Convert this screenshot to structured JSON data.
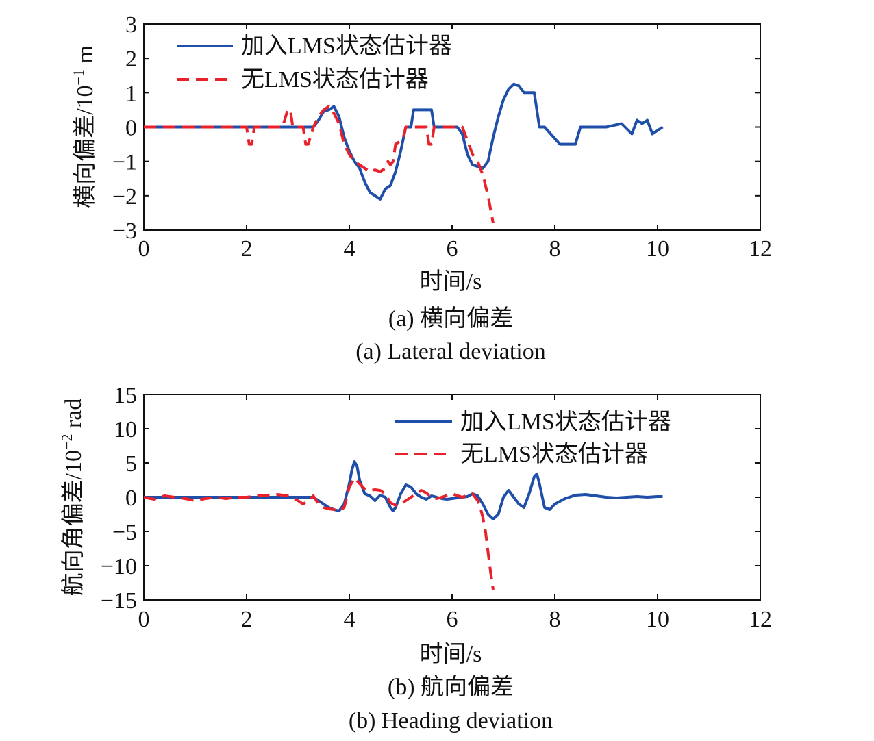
{
  "chart_data": [
    {
      "type": "line",
      "caption_cn": "(a) 横向偏差",
      "caption_en": "(a) Lateral deviation",
      "xlabel": "时间/s",
      "ylabel": "横向偏差/10",
      "ylabel_exp": "−1",
      "ylabel_unit": " m",
      "xlim": [
        0,
        12
      ],
      "ylim": [
        -3,
        3
      ],
      "xticks": [
        0,
        2,
        4,
        6,
        8,
        10,
        12
      ],
      "yticks": [
        -3,
        -2,
        -1,
        0,
        1,
        2,
        3
      ],
      "xtick_labels": [
        "0",
        "2",
        "4",
        "6",
        "8",
        "10",
        "12"
      ],
      "ytick_labels": [
        "−3",
        "−2",
        "−1",
        "0",
        "1",
        "2",
        "3"
      ],
      "grid": false,
      "legend_position": "top-left",
      "series": [
        {
          "name": "加入LMS状态估计器",
          "color": "#1f4fa8",
          "style": "solid",
          "x": [
            0,
            3.3,
            3.4,
            3.5,
            3.6,
            3.7,
            3.8,
            3.9,
            4.0,
            4.1,
            4.2,
            4.3,
            4.4,
            4.5,
            4.6,
            4.7,
            4.8,
            4.9,
            5.0,
            5.1,
            5.2,
            5.25,
            5.3,
            5.6,
            5.65,
            5.7,
            5.9,
            6.1,
            6.2,
            6.3,
            6.4,
            6.5,
            6.6,
            6.7,
            6.8,
            6.9,
            7.0,
            7.1,
            7.2,
            7.3,
            7.4,
            7.5,
            7.6,
            7.7,
            7.8,
            8.1,
            8.4,
            8.5,
            9.0,
            9.3,
            9.5,
            9.6,
            9.7,
            9.8,
            9.9,
            10.0,
            10.1
          ],
          "y": [
            0,
            0,
            0.2,
            0.45,
            0.5,
            0.6,
            0.3,
            -0.3,
            -0.7,
            -1.0,
            -1.2,
            -1.6,
            -1.9,
            -2.0,
            -2.1,
            -1.8,
            -1.7,
            -1.3,
            -0.7,
            0,
            0,
            0.5,
            0.5,
            0.5,
            0,
            0,
            0,
            0,
            -0.2,
            -0.8,
            -1.1,
            -1.15,
            -1.2,
            -1.0,
            -0.3,
            0.3,
            0.8,
            1.1,
            1.25,
            1.2,
            1.0,
            1.0,
            1.0,
            0,
            0,
            -0.5,
            -0.5,
            0,
            0,
            0.1,
            -0.2,
            0.2,
            0.1,
            0.2,
            -0.2,
            -0.1,
            0
          ]
        },
        {
          "name": "无LMS状态估计器",
          "color": "#e8212b",
          "style": "dashed",
          "x": [
            0,
            2.0,
            2.05,
            2.1,
            2.15,
            2.2,
            2.7,
            2.8,
            2.85,
            2.9,
            3.0,
            3.1,
            3.15,
            3.2,
            3.3,
            3.4,
            3.5,
            3.6,
            3.7,
            3.8,
            3.9,
            4.0,
            4.1,
            4.2,
            4.3,
            4.4,
            4.5,
            4.6,
            4.7,
            4.75,
            4.8,
            4.85,
            4.9,
            5.0,
            5.05,
            5.1,
            5.3,
            5.4,
            5.5,
            5.55,
            5.6,
            5.65,
            5.7,
            6.0,
            6.2,
            6.3,
            6.4,
            6.5,
            6.6,
            6.7,
            6.75,
            6.8
          ],
          "y": [
            0,
            0,
            -0.5,
            -0.5,
            0,
            0,
            0,
            0.5,
            0.5,
            0,
            0,
            0,
            -0.5,
            -0.5,
            0,
            0.3,
            0.5,
            0.6,
            0.4,
            0.1,
            -0.5,
            -0.8,
            -1.0,
            -1.1,
            -1.2,
            -1.3,
            -1.25,
            -1.3,
            -1.2,
            -1.0,
            -1.1,
            -1.0,
            -0.5,
            -0.4,
            -0.3,
            0,
            0,
            0,
            0,
            -0.5,
            -0.5,
            0,
            0,
            0,
            0,
            -0.4,
            -0.8,
            -1.0,
            -1.4,
            -2.0,
            -2.4,
            -2.8
          ]
        }
      ]
    },
    {
      "type": "line",
      "caption_cn": "(b) 航向偏差",
      "caption_en": "(b) Heading deviation",
      "xlabel": "时间/s",
      "ylabel": "航向角偏差/10",
      "ylabel_exp": "−2",
      "ylabel_unit": " rad",
      "xlim": [
        0,
        12
      ],
      "ylim": [
        -15,
        15
      ],
      "xticks": [
        0,
        2,
        4,
        6,
        8,
        10,
        12
      ],
      "yticks": [
        -15,
        -10,
        -5,
        0,
        5,
        10,
        15
      ],
      "xtick_labels": [
        "0",
        "2",
        "4",
        "6",
        "8",
        "10",
        "12"
      ],
      "ytick_labels": [
        "−15",
        "−10",
        "−5",
        "0",
        "5",
        "10",
        "15"
      ],
      "grid": false,
      "legend_position": "top-right",
      "series": [
        {
          "name": "加入LMS状态估计器",
          "color": "#1f4fa8",
          "style": "solid",
          "x": [
            0,
            3.3,
            3.4,
            3.5,
            3.6,
            3.7,
            3.8,
            3.9,
            3.95,
            4.0,
            4.05,
            4.1,
            4.15,
            4.2,
            4.3,
            4.4,
            4.5,
            4.6,
            4.7,
            4.8,
            4.85,
            4.9,
            5.0,
            5.1,
            5.2,
            5.3,
            5.4,
            5.5,
            5.6,
            5.7,
            5.8,
            5.9,
            6.0,
            6.1,
            6.2,
            6.3,
            6.4,
            6.5,
            6.6,
            6.7,
            6.8,
            6.9,
            7.0,
            7.1,
            7.2,
            7.3,
            7.4,
            7.5,
            7.6,
            7.65,
            7.7,
            7.8,
            7.9,
            8.0,
            8.2,
            8.4,
            8.6,
            8.8,
            9.0,
            9.2,
            9.4,
            9.6,
            9.8,
            10.0,
            10.1
          ],
          "y": [
            0,
            0,
            -0.5,
            -1.0,
            -1.5,
            -1.8,
            -2.0,
            -1.0,
            0.5,
            2.0,
            4.0,
            5.2,
            4.5,
            2.5,
            0.5,
            0.2,
            -0.5,
            0.3,
            0,
            -1.5,
            -2.0,
            -1.5,
            0.5,
            1.8,
            1.5,
            0.5,
            0,
            -0.3,
            0.2,
            0,
            -0.2,
            -0.3,
            -0.2,
            -0.1,
            0,
            0.1,
            0.5,
            0.2,
            -1.0,
            -2.5,
            -3.2,
            -2.5,
            0,
            1.0,
            0,
            -1.0,
            -1.5,
            0.5,
            3.0,
            3.4,
            2.0,
            -1.5,
            -1.8,
            -1.0,
            -0.2,
            0.3,
            0.4,
            0.2,
            0,
            -0.1,
            0,
            0.1,
            0,
            0.1,
            0.1
          ]
        },
        {
          "name": "无LMS状态估计器",
          "color": "#e8212b",
          "style": "dashed",
          "x": [
            0,
            0.2,
            0.4,
            0.6,
            0.8,
            1.0,
            1.2,
            1.4,
            1.6,
            1.8,
            2.0,
            2.2,
            2.4,
            2.6,
            2.8,
            3.0,
            3.1,
            3.2,
            3.3,
            3.4,
            3.5,
            3.6,
            3.7,
            3.8,
            3.9,
            3.95,
            4.0,
            4.1,
            4.2,
            4.3,
            4.4,
            4.5,
            4.6,
            4.7,
            4.8,
            4.85,
            4.9,
            5.0,
            5.1,
            5.2,
            5.3,
            5.4,
            5.5,
            5.6,
            5.7,
            5.8,
            6.0,
            6.2,
            6.3,
            6.4,
            6.5,
            6.55,
            6.6,
            6.65,
            6.7,
            6.75,
            6.8
          ],
          "y": [
            0,
            -0.3,
            0.2,
            0,
            -0.2,
            -0.5,
            -0.2,
            0,
            -0.2,
            0,
            0,
            0.2,
            0.3,
            0.4,
            0.2,
            -0.5,
            -1.0,
            -0.5,
            0.2,
            -1.0,
            -1.5,
            -1.7,
            -1.8,
            -2.0,
            -1.5,
            0,
            1.5,
            2.8,
            2.0,
            1.2,
            1.0,
            1.1,
            1.0,
            0.5,
            -0.8,
            -1.0,
            -1.2,
            -1.0,
            -0.5,
            0,
            0.5,
            1.0,
            0.6,
            0,
            -0.2,
            0,
            0.5,
            0,
            0.3,
            0.5,
            -0.5,
            -1.5,
            -3.0,
            -5.0,
            -8.0,
            -11.0,
            -13.5
          ]
        }
      ]
    }
  ]
}
